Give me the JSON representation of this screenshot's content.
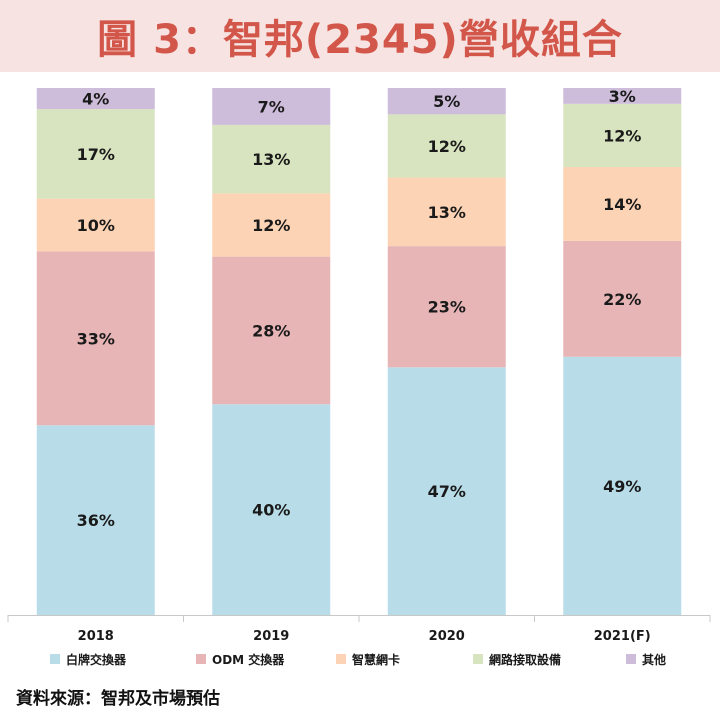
{
  "title": "圖 3：智邦(2345)營收組合",
  "source": "資料來源：智邦及市場預估",
  "colors": {
    "title_bg": "#f7e3e1",
    "title_text": "#d2564a"
  },
  "chart_data": {
    "type": "bar",
    "stacked": true,
    "categories": [
      "2018",
      "2019",
      "2020",
      "2021(F)"
    ],
    "series": [
      {
        "name": "白牌交換器",
        "color": "#b8dde9",
        "values": [
          36,
          40,
          47,
          49
        ]
      },
      {
        "name": "ODM 交換器",
        "color": "#e8b5b7",
        "values": [
          33,
          28,
          23,
          22
        ]
      },
      {
        "name": "智慧網卡",
        "color": "#fcd3b4",
        "values": [
          10,
          12,
          13,
          14
        ]
      },
      {
        "name": "網路接取設備",
        "color": "#d8e4bf",
        "values": [
          17,
          13,
          12,
          12
        ]
      },
      {
        "name": "其他",
        "color": "#cdbcda",
        "values": [
          4,
          7,
          5,
          3
        ]
      }
    ],
    "value_suffix": "%",
    "legend": "bottom",
    "grid": false
  }
}
